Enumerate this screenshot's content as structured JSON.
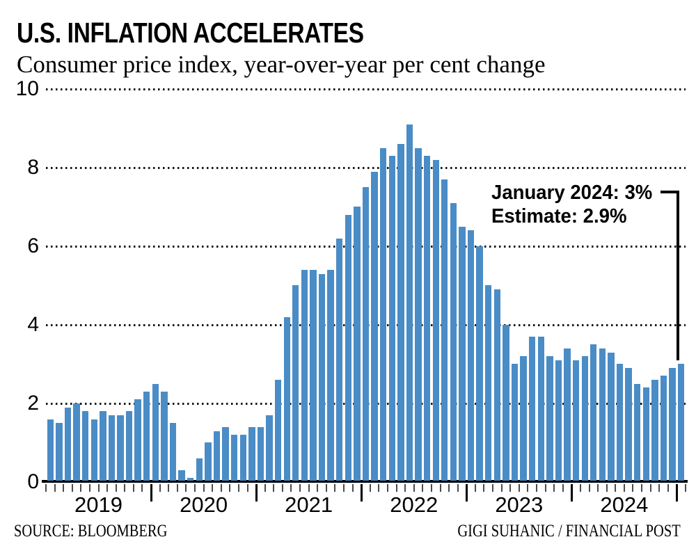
{
  "chart_data": {
    "type": "bar",
    "title": "U.S. INFLATION ACCELERATES",
    "subtitle": "Consumer price index, year-over-year per cent change",
    "source": "SOURCE: BLOOMBERG",
    "credit": "GIGI SUHANIC / FINANCIAL POST",
    "bar_color": "#4a8cc6",
    "grid": "horizontal dotted",
    "ylim": [
      0,
      10
    ],
    "y_ticks": [
      10,
      8,
      6,
      4,
      2,
      0
    ],
    "y_gridlines": [
      10,
      8,
      6,
      4,
      2
    ],
    "x_year_labels": [
      "2019",
      "2020",
      "2021",
      "2022",
      "2023",
      "2024"
    ],
    "months": [
      "Jan 2019",
      "Feb 2019",
      "Mar 2019",
      "Apr 2019",
      "May 2019",
      "Jun 2019",
      "Jul 2019",
      "Aug 2019",
      "Sep 2019",
      "Oct 2019",
      "Nov 2019",
      "Dec 2019",
      "Jan 2020",
      "Feb 2020",
      "Mar 2020",
      "Apr 2020",
      "May 2020",
      "Jun 2020",
      "Jul 2020",
      "Aug 2020",
      "Sep 2020",
      "Oct 2020",
      "Nov 2020",
      "Dec 2020",
      "Jan 2021",
      "Feb 2021",
      "Mar 2021",
      "Apr 2021",
      "May 2021",
      "Jun 2021",
      "Jul 2021",
      "Aug 2021",
      "Sep 2021",
      "Oct 2021",
      "Nov 2021",
      "Dec 2021",
      "Jan 2022",
      "Feb 2022",
      "Mar 2022",
      "Apr 2022",
      "May 2022",
      "Jun 2022",
      "Jul 2022",
      "Aug 2022",
      "Sep 2022",
      "Oct 2022",
      "Nov 2022",
      "Dec 2022",
      "Jan 2023",
      "Feb 2023",
      "Mar 2023",
      "Apr 2023",
      "May 2023",
      "Jun 2023",
      "Jul 2023",
      "Aug 2023",
      "Sep 2023",
      "Oct 2023",
      "Nov 2023",
      "Dec 2023",
      "Jan 2024",
      "Feb 2024",
      "Mar 2024",
      "Apr 2024",
      "May 2024",
      "Jun 2024",
      "Jul 2024",
      "Aug 2024",
      "Sep 2024",
      "Oct 2024",
      "Nov 2024",
      "Dec 2024",
      "Jan 2025"
    ],
    "values": [
      1.6,
      1.5,
      1.9,
      2.0,
      1.8,
      1.6,
      1.8,
      1.7,
      1.7,
      1.8,
      2.1,
      2.3,
      2.5,
      2.3,
      1.5,
      0.3,
      0.1,
      0.6,
      1.0,
      1.3,
      1.4,
      1.2,
      1.2,
      1.4,
      1.4,
      1.7,
      2.6,
      4.2,
      5.0,
      5.4,
      5.4,
      5.3,
      5.4,
      6.2,
      6.8,
      7.0,
      7.5,
      7.9,
      8.5,
      8.3,
      8.6,
      9.1,
      8.5,
      8.3,
      8.2,
      7.7,
      7.1,
      6.5,
      6.4,
      6.0,
      5.0,
      4.9,
      4.0,
      3.0,
      3.2,
      3.7,
      3.7,
      3.2,
      3.1,
      3.4,
      3.1,
      3.2,
      3.5,
      3.4,
      3.3,
      3.0,
      2.9,
      2.5,
      2.4,
      2.6,
      2.7,
      2.9,
      3.0
    ],
    "annotation": {
      "line1": "January 2024: 3%",
      "line2": "Estimate: 2.9%",
      "target_bar_index": 72,
      "target_value": 3.0
    }
  }
}
